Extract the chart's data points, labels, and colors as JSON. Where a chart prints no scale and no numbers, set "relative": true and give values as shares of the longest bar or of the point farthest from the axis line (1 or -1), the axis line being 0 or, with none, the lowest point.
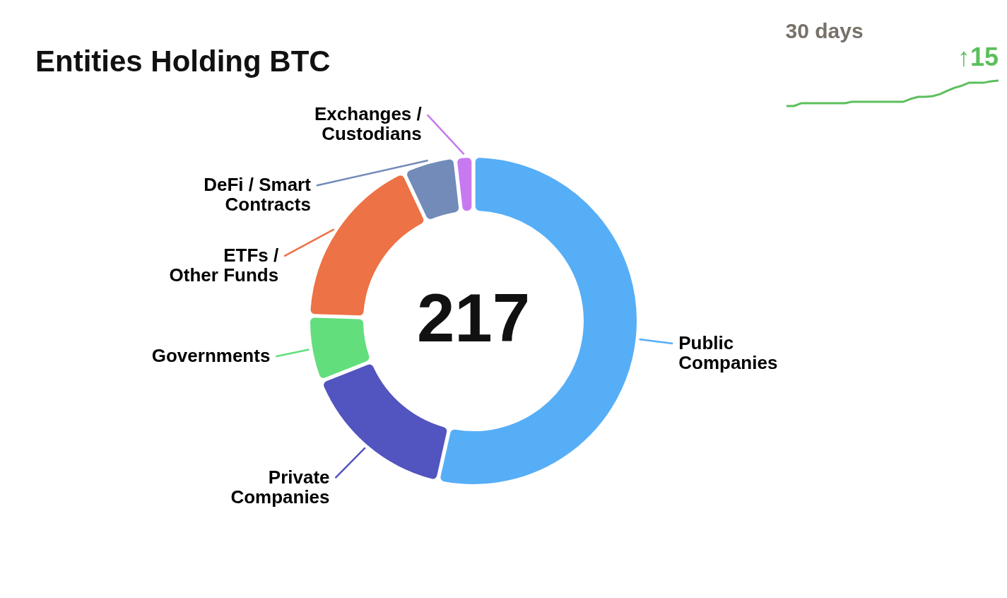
{
  "chart_data": [
    {
      "type": "donut",
      "title": "Entities Holding BTC",
      "categories": [
        "Public Companies",
        "Private Companies",
        "Governments",
        "ETFs / Other Funds",
        "DeFi / Smart Contracts",
        "Exchanges / Custodians"
      ],
      "values": [
        53.5,
        15.5,
        6.5,
        17.5,
        5.2,
        1.8
      ],
      "colors": [
        "#56aef7",
        "#5254bf",
        "#62de7c",
        "#ed7245",
        "#728bb9",
        "#c77af0"
      ],
      "annotations": [
        "217"
      ],
      "legend": false
    },
    {
      "type": "line",
      "title": "30 days",
      "relative": true,
      "categories": [
        null,
        null,
        null,
        null,
        null,
        null,
        null,
        null,
        null,
        null,
        null,
        null,
        null,
        null,
        null,
        null,
        null,
        null,
        null,
        null,
        null,
        null,
        null,
        null,
        null,
        null,
        null,
        null,
        null,
        null
      ],
      "series": [
        {
          "color": "#5cbf5c",
          "values": [
            0,
            0,
            0.11,
            0.11,
            0.11,
            0.11,
            0.11,
            0.11,
            0.11,
            0.17,
            0.17,
            0.17,
            0.17,
            0.17,
            0.17,
            0.17,
            0.17,
            0.28,
            0.36,
            0.36,
            0.39,
            0.47,
            0.6,
            0.72,
            0.8,
            0.92,
            0.92,
            0.92,
            0.97,
            1
          ]
        }
      ],
      "annotations": [
        "↑15"
      ],
      "tick_labels": false,
      "marker": "none"
    }
  ]
}
